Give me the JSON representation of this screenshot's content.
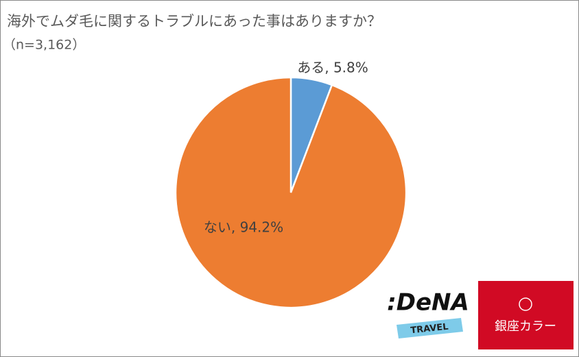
{
  "chart_data": {
    "type": "pie",
    "title": "海外でムダ毛に関するトラブルにあった事はありますか？",
    "subtitle": "（n=3,162）",
    "categories": [
      "ある",
      "ない"
    ],
    "values": [
      5.8,
      94.2
    ],
    "value_labels": [
      "ある, 5.8%",
      "ない, 94.2%"
    ],
    "colors": [
      "#5b9bd5",
      "#ed7d31"
    ]
  },
  "logos": {
    "dena": ":DeNA",
    "dena_sub": "TRAVEL",
    "ginza": "銀座カラー"
  }
}
